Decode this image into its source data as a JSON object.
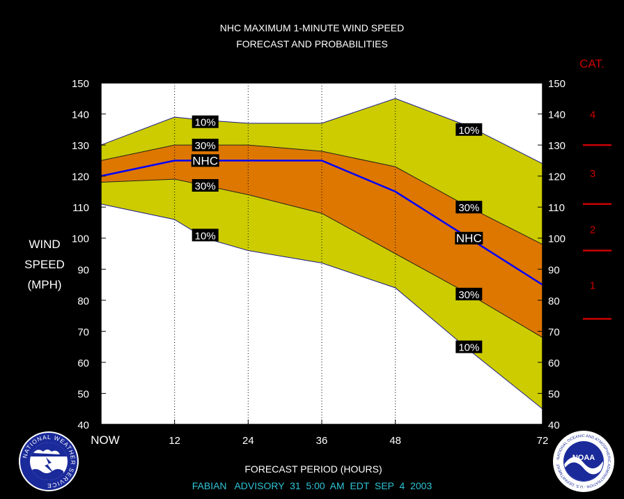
{
  "chart_data": {
    "type": "area",
    "title_line1": "NHC MAXIMUM 1-MINUTE WIND SPEED",
    "title_line2": "FORECAST AND PROBABILITIES",
    "ylabel_lines": [
      "WIND",
      "SPEED",
      "(MPH)"
    ],
    "xlabel": "FORECAST PERIOD (HOURS)",
    "footer": "FABIAN   ADVISORY  31  5:00  AM  EDT  SEP  4  2003",
    "x": [
      0,
      12,
      24,
      36,
      48,
      72
    ],
    "x_tick_labels": [
      "NOW",
      "12",
      "24",
      "36",
      "48",
      "72"
    ],
    "xlim": [
      0,
      72
    ],
    "ylim": [
      40,
      150
    ],
    "y_ticks": [
      40,
      50,
      60,
      70,
      80,
      90,
      100,
      110,
      120,
      130,
      140,
      150
    ],
    "colors": {
      "background": "#000000",
      "plot_background": "#ffffff",
      "outer_band": "#cccc00",
      "inner_band": "#dd7700",
      "nhc_line": "#0000ff",
      "category": "#cc0000",
      "footer": "#2ec4d6"
    },
    "series": [
      {
        "label": "10%",
        "x": [
          0,
          12,
          17,
          24,
          36,
          48,
          60,
          72
        ],
        "values": [
          130,
          139,
          138,
          137,
          137,
          145,
          136,
          124
        ]
      },
      {
        "label": "30%",
        "x": [
          0,
          12,
          17,
          24,
          36,
          48,
          60,
          72
        ],
        "values": [
          125,
          130,
          130,
          130,
          128,
          123,
          110,
          98
        ]
      },
      {
        "label": "NHC",
        "x": [
          0,
          12,
          24,
          36,
          48,
          60,
          72
        ],
        "values": [
          120,
          125,
          125,
          125,
          115,
          100,
          85
        ]
      },
      {
        "label": "30%",
        "x": [
          0,
          12,
          24,
          36,
          48,
          60,
          72
        ],
        "values": [
          118,
          119,
          114,
          108,
          95,
          82,
          68
        ]
      },
      {
        "label": "10%",
        "x": [
          0,
          12,
          17,
          24,
          36,
          48,
          60,
          72
        ],
        "values": [
          111,
          106,
          100,
          96,
          92,
          84,
          64,
          45
        ]
      }
    ],
    "series_labels": [
      {
        "text": "10%",
        "x": 17,
        "y": 137.5
      },
      {
        "text": "30%",
        "x": 17,
        "y": 130
      },
      {
        "text": "NHC",
        "x": 17,
        "y": 125
      },
      {
        "text": "30%",
        "x": 17,
        "y": 117
      },
      {
        "text": "10%",
        "x": 17,
        "y": 101
      },
      {
        "text": "10%",
        "x": 60,
        "y": 135
      },
      {
        "text": "30%",
        "x": 60,
        "y": 110
      },
      {
        "text": "NHC",
        "x": 60,
        "y": 100
      },
      {
        "text": "30%",
        "x": 60,
        "y": 82
      },
      {
        "text": "10%",
        "x": 60,
        "y": 65
      }
    ],
    "category_title": "CAT.",
    "categories": [
      {
        "label": "4",
        "at": 140,
        "boundary": 130
      },
      {
        "label": "3",
        "at": 121,
        "boundary": 111
      },
      {
        "label": "2",
        "at": 103,
        "boundary": 96
      },
      {
        "label": "1",
        "at": 85,
        "boundary": 74
      }
    ]
  },
  "logos": {
    "left_text": "NATIONAL WEATHER SERVICE",
    "right_center": "NOAA",
    "right_ring": "NATIONAL OCEANIC AND ATMOSPHERIC ADMINISTRATION · U.S. DEPARTMENT OF COMMERCE"
  }
}
